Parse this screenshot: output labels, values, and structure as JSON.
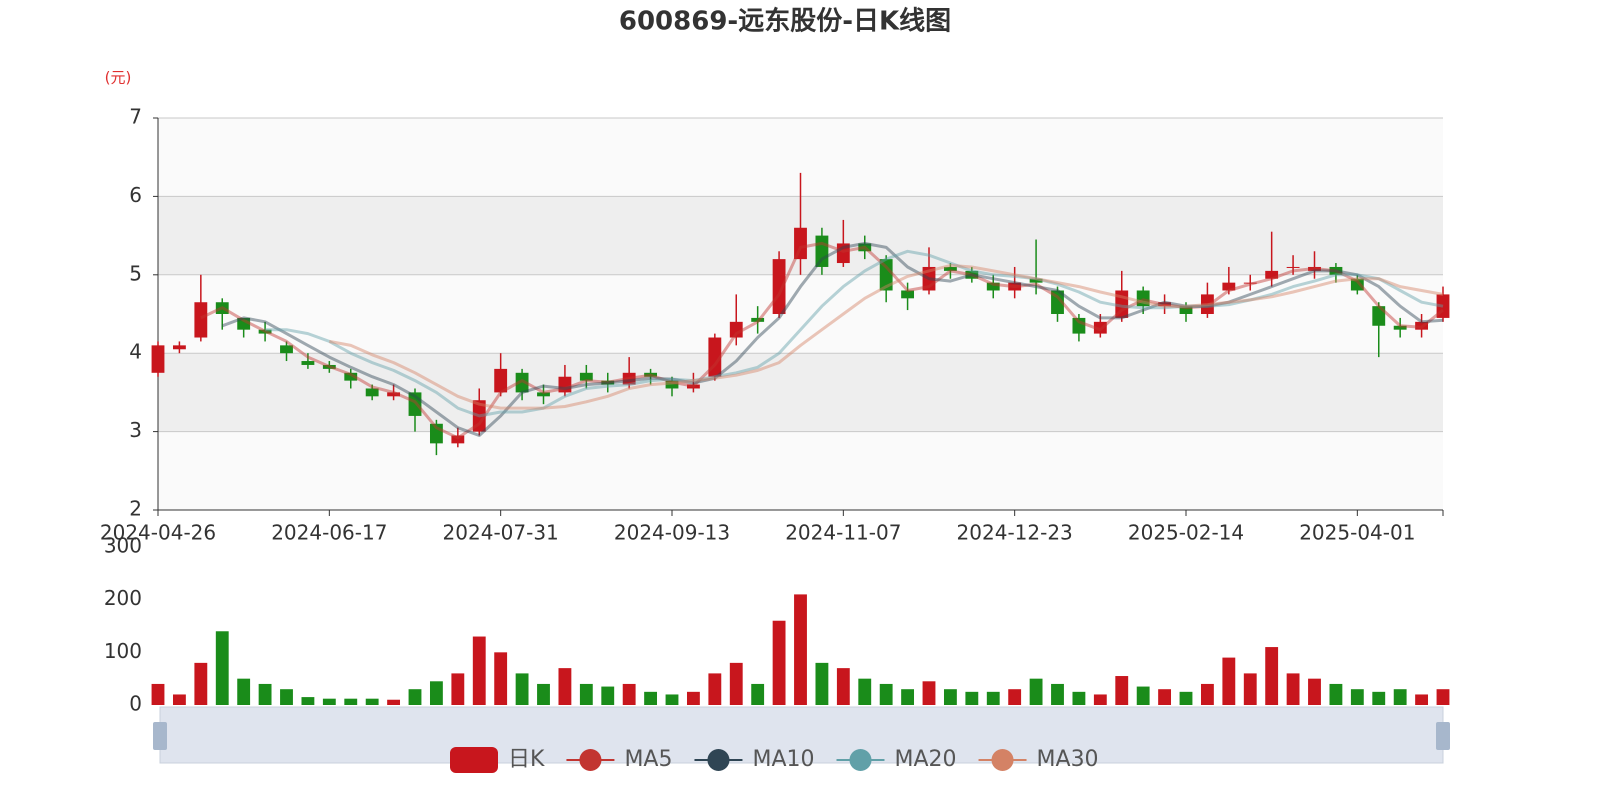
{
  "chart_data": [
    {
      "type": "candlestick",
      "title": "600869-远东股份-日K线图",
      "y_label": "(元)",
      "categories": [
        "2024-04-26",
        null,
        null,
        null,
        null,
        null,
        null,
        null,
        "2024-06-17",
        null,
        null,
        null,
        null,
        null,
        null,
        null,
        "2024-07-31",
        null,
        null,
        null,
        null,
        null,
        null,
        null,
        "2024-09-13",
        null,
        null,
        null,
        null,
        null,
        null,
        null,
        "2024-11-07",
        null,
        null,
        null,
        null,
        null,
        null,
        null,
        "2024-12-23",
        null,
        null,
        null,
        null,
        null,
        null,
        null,
        "2025-02-14",
        null,
        null,
        null,
        null,
        null,
        null,
        null,
        "2025-04-01",
        null,
        null,
        null,
        null
      ],
      "ylim": [
        2,
        7
      ],
      "yticks": [
        2,
        3,
        4,
        5,
        6,
        7
      ],
      "grid": true,
      "series": [
        {
          "name": "日K",
          "type": "candlestick",
          "up_color": "#c8161d",
          "down_color": "#1a8c1a",
          "values": [
            [
              3.75,
              4.1,
              3.7,
              4.15
            ],
            [
              4.05,
              4.1,
              4.0,
              4.15
            ],
            [
              4.2,
              4.65,
              4.15,
              5.0
            ],
            [
              4.65,
              4.5,
              4.3,
              4.7
            ],
            [
              4.45,
              4.3,
              4.2,
              4.4
            ],
            [
              4.3,
              4.25,
              4.15,
              4.4
            ],
            [
              4.1,
              4.0,
              3.9,
              4.15
            ],
            [
              3.9,
              3.85,
              3.8,
              4.0
            ],
            [
              3.85,
              3.8,
              3.75,
              3.9
            ],
            [
              3.75,
              3.65,
              3.55,
              3.8
            ],
            [
              3.55,
              3.45,
              3.4,
              3.6
            ],
            [
              3.45,
              3.5,
              3.4,
              3.6
            ],
            [
              3.5,
              3.2,
              3.0,
              3.55
            ],
            [
              3.1,
              2.85,
              2.7,
              3.15
            ],
            [
              2.85,
              2.95,
              2.8,
              3.05
            ],
            [
              3.0,
              3.4,
              2.95,
              3.55
            ],
            [
              3.5,
              3.8,
              3.45,
              4.0
            ],
            [
              3.75,
              3.5,
              3.4,
              3.8
            ],
            [
              3.5,
              3.45,
              3.35,
              3.6
            ],
            [
              3.5,
              3.7,
              3.45,
              3.85
            ],
            [
              3.75,
              3.65,
              3.55,
              3.85
            ],
            [
              3.65,
              3.6,
              3.5,
              3.75
            ],
            [
              3.6,
              3.75,
              3.55,
              3.95
            ],
            [
              3.75,
              3.7,
              3.6,
              3.8
            ],
            [
              3.65,
              3.55,
              3.45,
              3.7
            ],
            [
              3.55,
              3.6,
              3.5,
              3.75
            ],
            [
              3.7,
              4.2,
              3.65,
              4.25
            ],
            [
              4.2,
              4.4,
              4.1,
              4.75
            ],
            [
              4.45,
              4.4,
              4.25,
              4.6
            ],
            [
              4.5,
              5.2,
              4.45,
              5.3
            ],
            [
              5.2,
              5.6,
              5.0,
              6.3
            ],
            [
              5.5,
              5.1,
              5.0,
              5.6
            ],
            [
              5.15,
              5.4,
              5.1,
              5.7
            ],
            [
              5.4,
              5.3,
              5.2,
              5.5
            ],
            [
              5.2,
              4.8,
              4.65,
              5.25
            ],
            [
              4.8,
              4.7,
              4.55,
              4.9
            ],
            [
              4.8,
              5.1,
              4.75,
              5.35
            ],
            [
              5.1,
              5.05,
              4.95,
              5.15
            ],
            [
              5.05,
              4.95,
              4.9,
              5.1
            ],
            [
              4.9,
              4.8,
              4.7,
              5.0
            ],
            [
              4.8,
              4.9,
              4.7,
              5.1
            ],
            [
              4.95,
              4.9,
              4.75,
              5.45
            ],
            [
              4.8,
              4.5,
              4.4,
              4.85
            ],
            [
              4.45,
              4.25,
              4.15,
              4.5
            ],
            [
              4.25,
              4.4,
              4.2,
              4.5
            ],
            [
              4.45,
              4.8,
              4.4,
              5.05
            ],
            [
              4.8,
              4.6,
              4.5,
              4.85
            ],
            [
              4.6,
              4.65,
              4.5,
              4.75
            ],
            [
              4.6,
              4.5,
              4.4,
              4.65
            ],
            [
              4.5,
              4.75,
              4.45,
              4.9
            ],
            [
              4.8,
              4.9,
              4.75,
              5.1
            ],
            [
              4.9,
              4.9,
              4.8,
              5.0
            ],
            [
              4.95,
              5.05,
              4.85,
              5.55
            ],
            [
              5.1,
              5.1,
              5.0,
              5.25
            ],
            [
              5.05,
              5.1,
              4.95,
              5.3
            ],
            [
              5.1,
              5.0,
              4.9,
              5.15
            ],
            [
              4.95,
              4.8,
              4.75,
              5.0
            ],
            [
              4.6,
              4.35,
              3.95,
              4.65
            ],
            [
              4.35,
              4.3,
              4.2,
              4.45
            ],
            [
              4.3,
              4.4,
              4.2,
              4.5
            ],
            [
              4.45,
              4.75,
              4.4,
              4.85
            ]
          ]
        },
        {
          "name": "MA5",
          "type": "line",
          "color": "#c23531",
          "values": [
            null,
            null,
            4.45,
            4.58,
            4.42,
            4.28,
            4.15,
            3.95,
            3.83,
            3.73,
            3.57,
            3.5,
            3.38,
            3.05,
            2.92,
            3.1,
            3.5,
            3.65,
            3.5,
            3.55,
            3.65,
            3.63,
            3.68,
            3.72,
            3.63,
            3.58,
            3.85,
            4.25,
            4.4,
            4.75,
            5.35,
            5.4,
            5.3,
            5.35,
            5.1,
            4.8,
            4.85,
            5.05,
            5.0,
            4.88,
            4.85,
            4.88,
            4.72,
            4.4,
            4.3,
            4.55,
            4.68,
            4.62,
            4.58,
            4.6,
            4.8,
            4.88,
            4.95,
            5.05,
            5.08,
            5.05,
            4.92,
            4.6,
            4.35,
            4.33,
            4.55
          ]
        },
        {
          "name": "MA10",
          "type": "line",
          "color": "#2f4554",
          "values": [
            null,
            null,
            null,
            4.35,
            4.45,
            4.4,
            4.25,
            4.1,
            3.95,
            3.82,
            3.7,
            3.6,
            3.45,
            3.25,
            3.05,
            2.95,
            3.2,
            3.5,
            3.58,
            3.55,
            3.6,
            3.62,
            3.65,
            3.68,
            3.67,
            3.62,
            3.68,
            3.9,
            4.2,
            4.45,
            4.85,
            5.2,
            5.35,
            5.4,
            5.35,
            5.1,
            4.95,
            4.92,
            5.0,
            4.95,
            4.9,
            4.85,
            4.8,
            4.6,
            4.45,
            4.45,
            4.55,
            4.65,
            4.6,
            4.6,
            4.65,
            4.75,
            4.85,
            4.95,
            5.05,
            5.05,
            5.0,
            4.85,
            4.6,
            4.4,
            4.42
          ]
        },
        {
          "name": "MA20",
          "type": "line",
          "color": "#61a0a8",
          "values": [
            null,
            null,
            null,
            null,
            null,
            4.3,
            4.3,
            4.25,
            4.15,
            4.0,
            3.88,
            3.78,
            3.65,
            3.5,
            3.3,
            3.2,
            3.25,
            3.25,
            3.3,
            3.45,
            3.55,
            3.58,
            3.6,
            3.65,
            3.67,
            3.65,
            3.7,
            3.75,
            3.82,
            4.0,
            4.3,
            4.6,
            4.85,
            5.05,
            5.2,
            5.3,
            5.25,
            5.15,
            5.05,
            5.0,
            4.98,
            4.95,
            4.88,
            4.78,
            4.65,
            4.6,
            4.58,
            4.58,
            4.6,
            4.6,
            4.62,
            4.68,
            4.75,
            4.85,
            4.92,
            5.0,
            5.0,
            4.95,
            4.8,
            4.65,
            4.6
          ]
        },
        {
          "name": "MA30",
          "type": "line",
          "color": "#d48265",
          "values": [
            null,
            null,
            null,
            null,
            null,
            null,
            null,
            null,
            4.15,
            4.1,
            3.98,
            3.88,
            3.75,
            3.6,
            3.45,
            3.35,
            3.3,
            3.3,
            3.3,
            3.32,
            3.38,
            3.45,
            3.55,
            3.6,
            3.62,
            3.65,
            3.68,
            3.72,
            3.78,
            3.88,
            4.1,
            4.3,
            4.5,
            4.7,
            4.85,
            4.98,
            5.05,
            5.12,
            5.1,
            5.05,
            5.0,
            4.95,
            4.9,
            4.85,
            4.78,
            4.72,
            4.65,
            4.6,
            4.6,
            4.62,
            4.65,
            4.68,
            4.72,
            4.78,
            4.85,
            4.92,
            4.95,
            4.95,
            4.85,
            4.8,
            4.75
          ]
        }
      ]
    },
    {
      "type": "bar",
      "ylim": [
        0,
        300
      ],
      "yticks": [
        0,
        100,
        200,
        300
      ],
      "values": [
        40,
        20,
        80,
        140,
        50,
        40,
        30,
        15,
        12,
        12,
        12,
        10,
        30,
        45,
        60,
        130,
        100,
        60,
        40,
        70,
        40,
        35,
        40,
        25,
        20,
        25,
        60,
        80,
        40,
        160,
        210,
        80,
        70,
        50,
        40,
        30,
        45,
        30,
        25,
        25,
        30,
        50,
        40,
        25,
        20,
        55,
        35,
        30,
        25,
        40,
        90,
        60,
        110,
        60,
        50,
        40,
        30,
        25,
        30,
        20,
        30
      ]
    }
  ]
}
